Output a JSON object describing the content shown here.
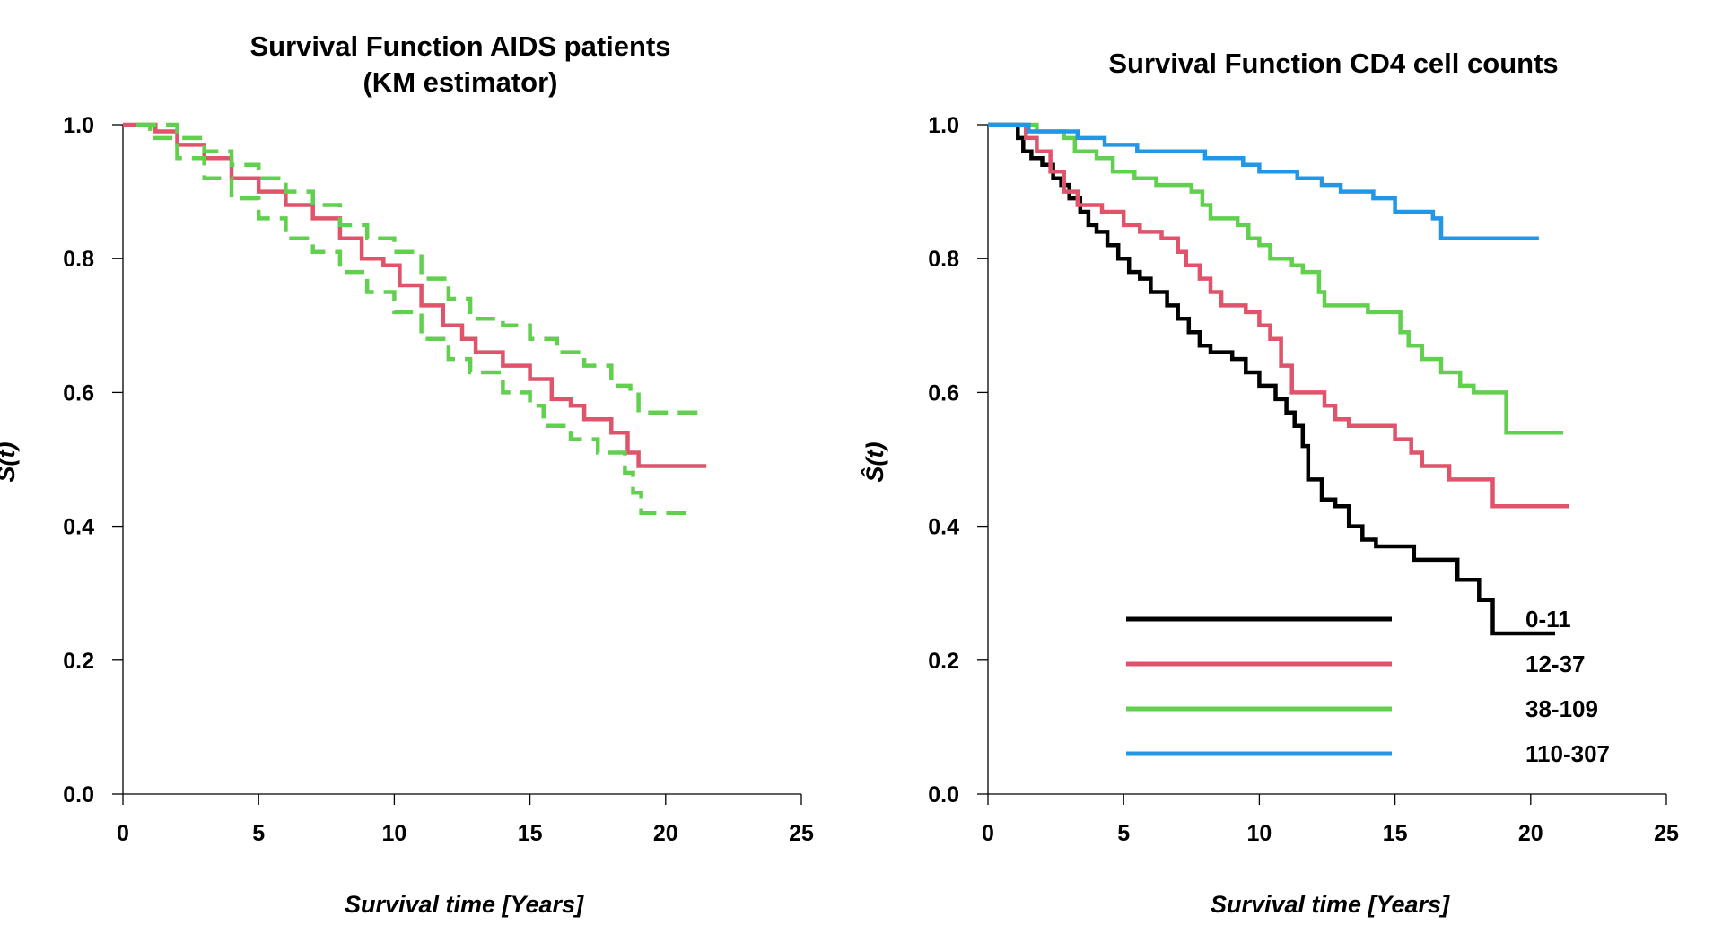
{
  "colors": {
    "black": "#000000",
    "red": "#DF536B",
    "green": "#61D04F",
    "blue": "#2297E6"
  },
  "chart_data": [
    {
      "type": "line",
      "title": [
        "Survival Function AIDS patients",
        "(KM estimator)"
      ],
      "xlabel": "Survival time [Years]",
      "ylabel": "Ŝ(t)",
      "xlim": [
        0,
        25
      ],
      "ylim": [
        0,
        1
      ],
      "xticks": [
        "0",
        "5",
        "10",
        "15",
        "20",
        "25"
      ],
      "yticks": [
        "0.0",
        "0.2",
        "0.4",
        "0.6",
        "0.8",
        "1.0"
      ],
      "grid": false,
      "series": [
        {
          "role": "estimate",
          "color": "#DF536B",
          "dashed": false,
          "points": [
            [
              0,
              1
            ],
            [
              0.8,
              1
            ],
            [
              1.2,
              0.99
            ],
            [
              2,
              0.97
            ],
            [
              3,
              0.95
            ],
            [
              4,
              0.92
            ],
            [
              5,
              0.9
            ],
            [
              6,
              0.88
            ],
            [
              7,
              0.86
            ],
            [
              8,
              0.83
            ],
            [
              8.8,
              0.8
            ],
            [
              9.6,
              0.79
            ],
            [
              10.2,
              0.76
            ],
            [
              11,
              0.73
            ],
            [
              11.8,
              0.7
            ],
            [
              12.5,
              0.68
            ],
            [
              13,
              0.66
            ],
            [
              14,
              0.64
            ],
            [
              15,
              0.62
            ],
            [
              15.8,
              0.59
            ],
            [
              16.5,
              0.58
            ],
            [
              17,
              0.56
            ],
            [
              18,
              0.54
            ],
            [
              18.6,
              0.51
            ],
            [
              19,
              0.49
            ],
            [
              21.5,
              0.49
            ]
          ]
        },
        {
          "role": "upper",
          "color": "#61D04F",
          "dashed": true,
          "points": [
            [
              0.5,
              1
            ],
            [
              1,
              1
            ],
            [
              2,
              0.98
            ],
            [
              3,
              0.96
            ],
            [
              4,
              0.94
            ],
            [
              5,
              0.92
            ],
            [
              6,
              0.9
            ],
            [
              7,
              0.88
            ],
            [
              8,
              0.85
            ],
            [
              9,
              0.83
            ],
            [
              10,
              0.81
            ],
            [
              11,
              0.77
            ],
            [
              12,
              0.74
            ],
            [
              12.8,
              0.71
            ],
            [
              14,
              0.7
            ],
            [
              15,
              0.68
            ],
            [
              16,
              0.66
            ],
            [
              17,
              0.64
            ],
            [
              18,
              0.61
            ],
            [
              18.7,
              0.6
            ],
            [
              19,
              0.57
            ],
            [
              21.5,
              0.57
            ]
          ]
        },
        {
          "role": "lower",
          "color": "#61D04F",
          "dashed": true,
          "points": [
            [
              0.5,
              1
            ],
            [
              1,
              0.98
            ],
            [
              2,
              0.95
            ],
            [
              3,
              0.92
            ],
            [
              4,
              0.89
            ],
            [
              5,
              0.86
            ],
            [
              6,
              0.83
            ],
            [
              7,
              0.81
            ],
            [
              8,
              0.78
            ],
            [
              9,
              0.75
            ],
            [
              10,
              0.72
            ],
            [
              11,
              0.68
            ],
            [
              12,
              0.65
            ],
            [
              12.8,
              0.63
            ],
            [
              14,
              0.6
            ],
            [
              15,
              0.58
            ],
            [
              15.5,
              0.55
            ],
            [
              16.5,
              0.53
            ],
            [
              17.5,
              0.51
            ],
            [
              18.5,
              0.48
            ],
            [
              18.8,
              0.45
            ],
            [
              19.1,
              0.42
            ],
            [
              21,
              0.42
            ]
          ]
        }
      ]
    },
    {
      "type": "line",
      "title": [
        "Survival Function CD4 cell counts"
      ],
      "xlabel": "Survival time [Years]",
      "ylabel": "Ŝ(t)",
      "xlim": [
        0,
        25
      ],
      "ylim": [
        0,
        1
      ],
      "xticks": [
        "0",
        "5",
        "10",
        "15",
        "20",
        "25"
      ],
      "yticks": [
        "0.0",
        "0.2",
        "0.4",
        "0.6",
        "0.8",
        "1.0"
      ],
      "grid": false,
      "legend": {
        "position": "bottom-right",
        "entries": [
          "0-11",
          "12-37",
          "38-109",
          "110-307"
        ]
      },
      "series": [
        {
          "name": "0-11",
          "color": "#000000",
          "points": [
            [
              0,
              1
            ],
            [
              1,
              1
            ],
            [
              1.1,
              0.98
            ],
            [
              1.3,
              0.96
            ],
            [
              1.6,
              0.95
            ],
            [
              2,
              0.94
            ],
            [
              2.4,
              0.92
            ],
            [
              2.7,
              0.91
            ],
            [
              3,
              0.89
            ],
            [
              3.4,
              0.87
            ],
            [
              3.7,
              0.85
            ],
            [
              4,
              0.84
            ],
            [
              4.4,
              0.82
            ],
            [
              4.8,
              0.8
            ],
            [
              5.2,
              0.78
            ],
            [
              5.6,
              0.77
            ],
            [
              6,
              0.75
            ],
            [
              6.6,
              0.73
            ],
            [
              7,
              0.71
            ],
            [
              7.4,
              0.69
            ],
            [
              7.8,
              0.67
            ],
            [
              8.2,
              0.66
            ],
            [
              9,
              0.65
            ],
            [
              9.5,
              0.63
            ],
            [
              10,
              0.61
            ],
            [
              10.6,
              0.59
            ],
            [
              11,
              0.57
            ],
            [
              11.3,
              0.55
            ],
            [
              11.6,
              0.52
            ],
            [
              11.8,
              0.47
            ],
            [
              12.3,
              0.44
            ],
            [
              12.8,
              0.43
            ],
            [
              13.3,
              0.4
            ],
            [
              13.8,
              0.38
            ],
            [
              14.3,
              0.37
            ],
            [
              15.7,
              0.35
            ],
            [
              17.3,
              0.32
            ],
            [
              18.1,
              0.29
            ],
            [
              18.6,
              0.24
            ],
            [
              20.9,
              0.24
            ]
          ]
        },
        {
          "name": "12-37",
          "color": "#DF536B",
          "points": [
            [
              0,
              1
            ],
            [
              1,
              1
            ],
            [
              1.4,
              0.98
            ],
            [
              1.8,
              0.96
            ],
            [
              2.3,
              0.93
            ],
            [
              2.8,
              0.9
            ],
            [
              3.3,
              0.88
            ],
            [
              4.2,
              0.87
            ],
            [
              5,
              0.85
            ],
            [
              5.6,
              0.84
            ],
            [
              6.4,
              0.83
            ],
            [
              7,
              0.81
            ],
            [
              7.3,
              0.79
            ],
            [
              7.8,
              0.77
            ],
            [
              8.2,
              0.75
            ],
            [
              8.6,
              0.73
            ],
            [
              9.5,
              0.72
            ],
            [
              10,
              0.7
            ],
            [
              10.4,
              0.68
            ],
            [
              10.8,
              0.64
            ],
            [
              11.2,
              0.6
            ],
            [
              12.4,
              0.58
            ],
            [
              12.8,
              0.56
            ],
            [
              13.3,
              0.55
            ],
            [
              15,
              0.53
            ],
            [
              15.6,
              0.51
            ],
            [
              16,
              0.49
            ],
            [
              17,
              0.47
            ],
            [
              18.6,
              0.43
            ],
            [
              21.4,
              0.43
            ]
          ]
        },
        {
          "name": "38-109",
          "color": "#61D04F",
          "points": [
            [
              0,
              1
            ],
            [
              1.2,
              1
            ],
            [
              1.8,
              0.99
            ],
            [
              2.8,
              0.98
            ],
            [
              3.2,
              0.96
            ],
            [
              4,
              0.95
            ],
            [
              4.6,
              0.93
            ],
            [
              5.4,
              0.92
            ],
            [
              6.2,
              0.91
            ],
            [
              7.5,
              0.9
            ],
            [
              7.9,
              0.88
            ],
            [
              8.2,
              0.86
            ],
            [
              9.2,
              0.85
            ],
            [
              9.6,
              0.83
            ],
            [
              10,
              0.82
            ],
            [
              10.4,
              0.8
            ],
            [
              11.2,
              0.79
            ],
            [
              11.6,
              0.78
            ],
            [
              12.2,
              0.75
            ],
            [
              12.4,
              0.73
            ],
            [
              14,
              0.72
            ],
            [
              15,
              0.72
            ],
            [
              15.2,
              0.69
            ],
            [
              15.5,
              0.67
            ],
            [
              16,
              0.65
            ],
            [
              16.7,
              0.63
            ],
            [
              17.4,
              0.61
            ],
            [
              17.9,
              0.6
            ],
            [
              19.1,
              0.54
            ],
            [
              21.2,
              0.54
            ]
          ]
        },
        {
          "name": "110-307",
          "color": "#2297E6",
          "points": [
            [
              0,
              1
            ],
            [
              1.5,
              0.99
            ],
            [
              3.3,
              0.98
            ],
            [
              4.3,
              0.97
            ],
            [
              5.5,
              0.96
            ],
            [
              8,
              0.95
            ],
            [
              9.4,
              0.94
            ],
            [
              10,
              0.93
            ],
            [
              11.4,
              0.92
            ],
            [
              12.3,
              0.91
            ],
            [
              13,
              0.9
            ],
            [
              14.2,
              0.89
            ],
            [
              15,
              0.87
            ],
            [
              16.4,
              0.86
            ],
            [
              16.7,
              0.83
            ],
            [
              18.5,
              0.83
            ],
            [
              20.3,
              0.83
            ]
          ]
        }
      ]
    }
  ]
}
